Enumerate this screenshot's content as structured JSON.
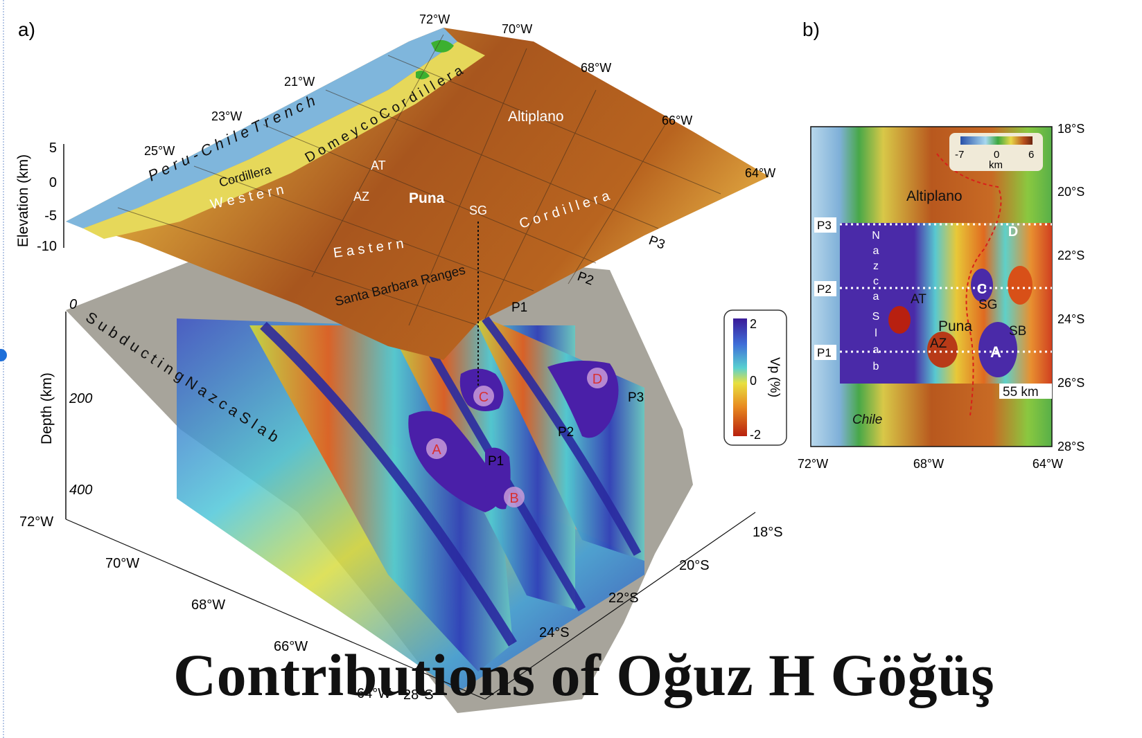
{
  "slide": {
    "title": "Contributions of Oğuz H Göğüş"
  },
  "panel_a": {
    "label": "a)",
    "elevation_axis": {
      "title": "Elevation (km)",
      "ticks": [
        "5",
        "0",
        "-5",
        "-10"
      ]
    },
    "depth_axis": {
      "title": "Depth (km)",
      "ticks": [
        "0",
        "200",
        "400"
      ]
    },
    "top_longitudes": [
      "72°W",
      "70°W",
      "68°W",
      "66°W",
      "64°W"
    ],
    "top_latitudes": [
      "21°W",
      "23°W",
      "25°W"
    ],
    "base_longitudes": [
      "72°W",
      "70°W",
      "68°W",
      "66°W",
      "64°W"
    ],
    "base_latitudes": [
      "18°S",
      "20°S",
      "22°S",
      "24°S",
      "28°S"
    ],
    "features": {
      "trench": "P e r u - C h i l e   T r e n c h",
      "domeyco": "D o m e y c o   C o r d i l l e r a",
      "western": "W e s t e r n",
      "cordillera_word": "Cordillera",
      "eastern": "E a s t e r n",
      "eastern_cordillera": "C o r d i l l e r a",
      "altiplano": "Altiplano",
      "puna": "Puna",
      "at": "AT",
      "az": "AZ",
      "sg": "SG",
      "santa_barbara": "Santa Barbara Ranges",
      "slab": "S u b d u c t i n g   N a z c a   S l a b"
    },
    "profiles": [
      "P1",
      "P2",
      "P3"
    ],
    "anomalies": [
      "A",
      "B",
      "C",
      "D"
    ],
    "colorbar": {
      "title": "Vp (%)",
      "max": "2",
      "mid": "0",
      "min": "-2"
    }
  },
  "panel_b": {
    "label": "b)",
    "lat_ticks": [
      "18°S",
      "20°S",
      "22°S",
      "24°S",
      "26°S",
      "28°S"
    ],
    "lon_ticks": [
      "72°W",
      "68°W",
      "64°W"
    ],
    "colorbar": {
      "min": "-7",
      "mid": "0",
      "max": "6",
      "unit": "km"
    },
    "labels": {
      "altiplano": "Altiplano",
      "chile": "Chile",
      "at": "AT",
      "sg": "SG",
      "puna": "Puna",
      "sb": "SB",
      "az": "AZ",
      "depth": "55 km",
      "slab_letters": [
        "N",
        "a",
        "z",
        "c",
        "a",
        "S",
        "l",
        "a",
        "b"
      ]
    },
    "profiles": [
      "P3",
      "P2",
      "P1"
    ],
    "anomalies": [
      "D",
      "C",
      "A"
    ]
  },
  "colors": {
    "high_velocity": "#4a2aa8",
    "low_velocity": "#c8321c",
    "lowland": "#e8d860",
    "highland": "#9a4a1c",
    "ocean": "#7fb6dc"
  }
}
